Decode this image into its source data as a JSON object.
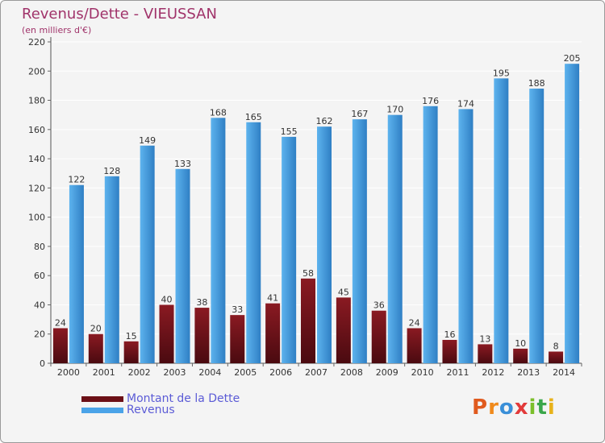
{
  "header": {
    "title": "Revenus/Dette - VIEUSSAN",
    "subtitle": "(en milliers d'€)"
  },
  "colors": {
    "background": "#f4f4f4",
    "grid": "#ffffff",
    "dette_top": "#8a1a22",
    "dette_bottom": "#4a0a10",
    "revenus_top": "#5db3ee",
    "revenus_bottom": "#2f7fc4",
    "label": "#333333"
  },
  "legend": {
    "items": [
      {
        "label": "Montant de la Dette",
        "color": "#6b0f16"
      },
      {
        "label": "Revenus",
        "color": "#4aa3e8"
      }
    ]
  },
  "logo": {
    "letters": [
      "P",
      "r",
      "o",
      "x",
      "i",
      "t",
      "i"
    ],
    "colors": [
      "#e05a1e",
      "#f08a1c",
      "#3a8fd8",
      "#e23a3a",
      "#7bbf2a",
      "#3aa64a",
      "#e8b21a"
    ]
  },
  "chart_data": {
    "type": "bar",
    "title": "Revenus/Dette - VIEUSSAN",
    "subtitle": "(en milliers d'€)",
    "categories": [
      "2000",
      "2001",
      "2002",
      "2003",
      "2004",
      "2005",
      "2006",
      "2007",
      "2008",
      "2009",
      "2010",
      "2011",
      "2012",
      "2013",
      "2014"
    ],
    "series": [
      {
        "name": "Montant de la Dette",
        "values": [
          24,
          20,
          15,
          40,
          38,
          33,
          41,
          58,
          45,
          36,
          24,
          16,
          13,
          10,
          8
        ]
      },
      {
        "name": "Revenus",
        "values": [
          122,
          128,
          149,
          133,
          168,
          165,
          155,
          162,
          167,
          170,
          176,
          174,
          195,
          188,
          205
        ]
      }
    ],
    "ylim": [
      0,
      220
    ],
    "yticks": [
      0,
      20,
      40,
      60,
      80,
      100,
      120,
      140,
      160,
      180,
      200,
      220
    ],
    "grid": true,
    "legend_position": "bottom-left"
  }
}
